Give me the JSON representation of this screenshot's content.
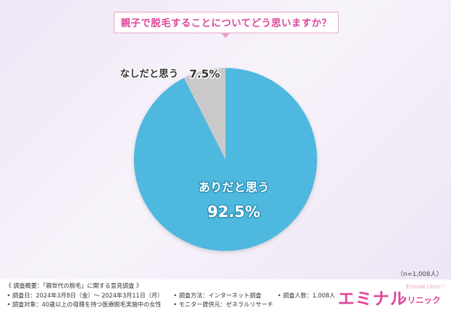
{
  "title": "親子で脱毛することについてどう思いますか？",
  "chart_data": {
    "type": "pie",
    "slices": [
      {
        "label": "なしだと思う",
        "value": 7.5,
        "value_text": "7.5%",
        "color": "#c9c9c9"
      },
      {
        "label": "ありだと思う",
        "value": 92.5,
        "value_text": "92.5%",
        "color": "#4fb8df"
      }
    ]
  },
  "n_note": "（n=1,008人）",
  "footer": {
    "header": "《 調査概要：「親世代の脱毛」に関する意見調査 》",
    "items": [
      "• 調査日：2024年3月8日（金）〜 2024年3月11日（月）",
      "• 調査方法：インターネット調査",
      "• 調査人数：1,008人",
      "• 調査対象：40歳以上の母親を持つ医療脱毛実施中の女性",
      "• モニター提供元：ゼネラルリサーチ"
    ]
  },
  "logo": {
    "main": "エミナル",
    "sub": "クリニック",
    "en": "Eminal clinic♡"
  },
  "colors": {
    "accent_pink": "#e0459a",
    "pie_blue": "#4fb8df",
    "pie_gray": "#c9c9c9"
  }
}
